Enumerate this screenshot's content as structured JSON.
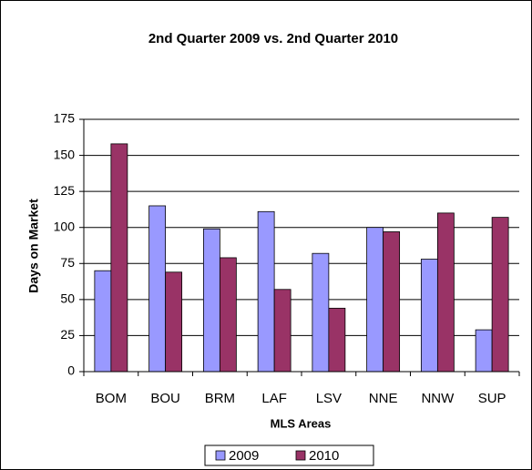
{
  "chart_data": {
    "type": "bar",
    "title": "2nd Quarter 2009 vs. 2nd Quarter 2010",
    "x_label": "MLS Areas",
    "y_label": "Days on Market",
    "categories": [
      "BOM",
      "BOU",
      "BRM",
      "LAF",
      "LSV",
      "NNE",
      "NNW",
      "SUP"
    ],
    "series": [
      {
        "name": "2009",
        "color": "#9999ff",
        "values": [
          70,
          115,
          99,
          111,
          82,
          100,
          78,
          29
        ]
      },
      {
        "name": "2010",
        "color": "#993366",
        "values": [
          158,
          69,
          79,
          57,
          44,
          97,
          110,
          107
        ]
      }
    ],
    "ylim": [
      0,
      175
    ],
    "yticks": [
      0,
      25,
      50,
      75,
      100,
      125,
      150,
      175
    ],
    "grid": true,
    "legend": "bottom"
  }
}
